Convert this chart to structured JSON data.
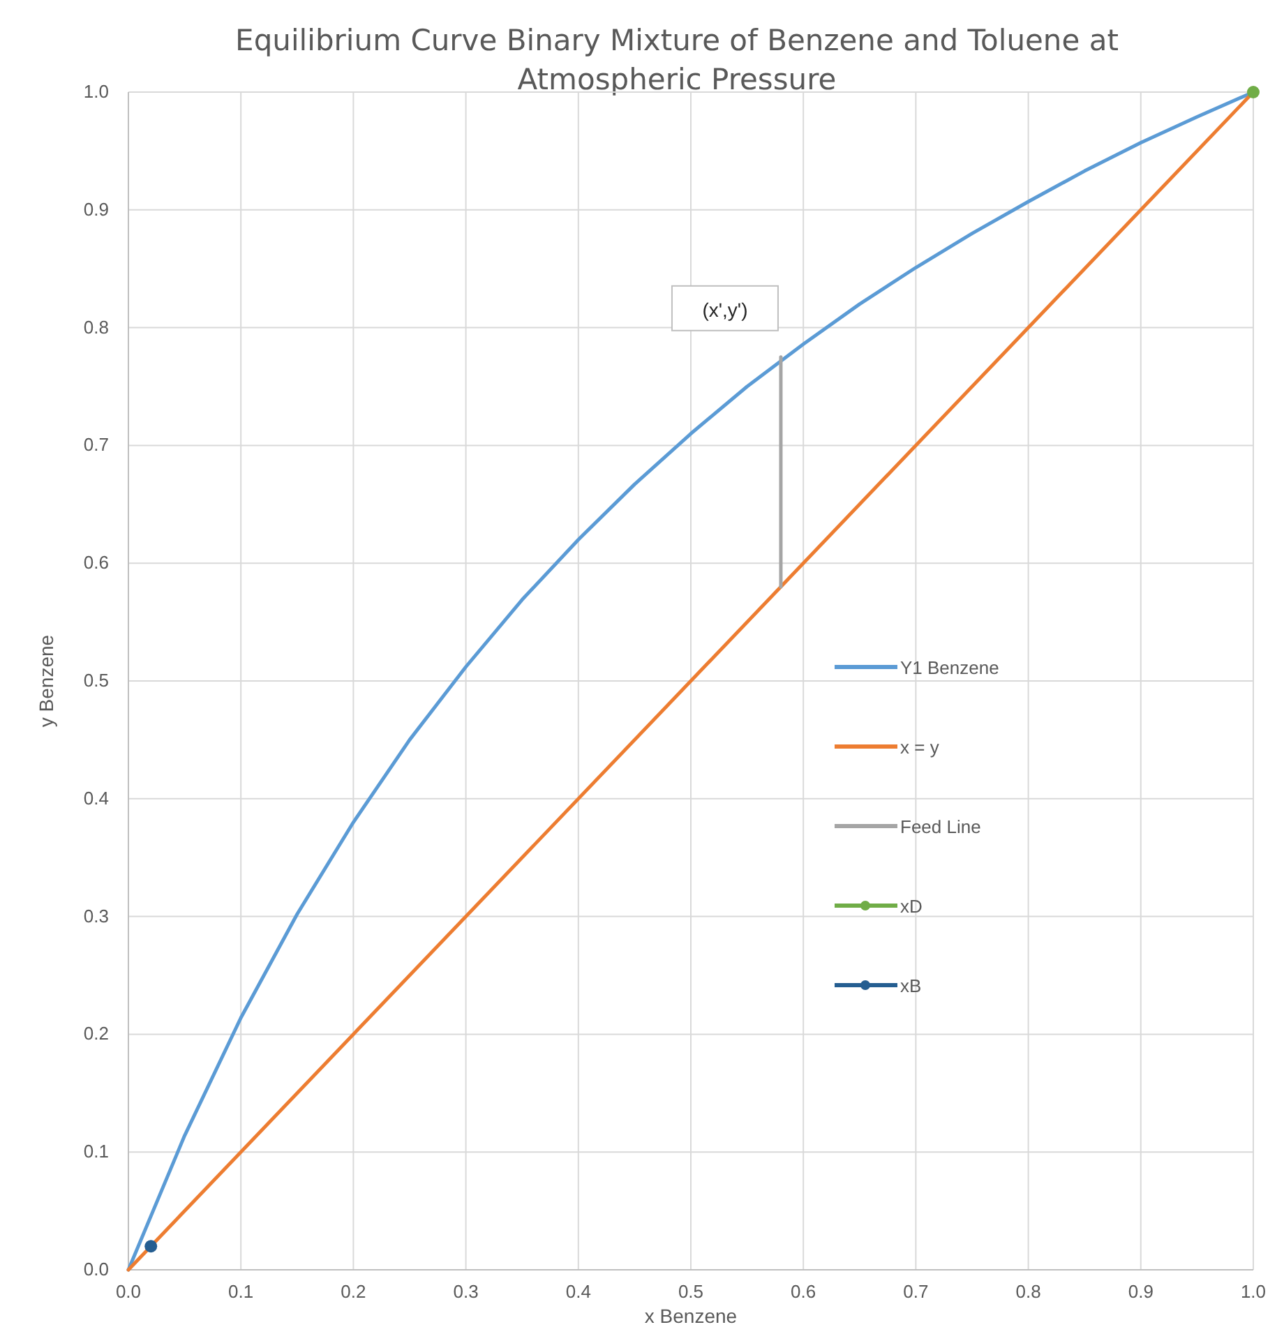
{
  "chart_data": {
    "type": "line",
    "title": "Equilibrium Curve Binary Mixture of Benzene and Toluene at Atmospheric Pressure",
    "xlabel": "x Benzene",
    "ylabel": "y Benzene",
    "xlim": [
      0,
      1
    ],
    "ylim": [
      0,
      1
    ],
    "xticks": [
      {
        "value": 0,
        "label": "0.0"
      },
      0.1,
      0.2,
      0.3,
      0.4,
      0.5,
      0.6,
      0.7,
      0.8,
      0.9,
      {
        "value": 1,
        "label": "1.0"
      }
    ],
    "yticks": [
      {
        "value": 0,
        "label": "0.0"
      },
      0.1,
      0.2,
      0.3,
      0.4,
      0.5,
      0.6,
      0.7,
      0.8,
      0.9,
      {
        "value": 1,
        "label": "1.0"
      }
    ],
    "grid": true,
    "legend": "right",
    "marker": "none",
    "line_style": "solid",
    "annotations": [
      {
        "text": "(x',y')",
        "x": 0.58,
        "y": 0.775
      }
    ],
    "series": [
      {
        "name": "Y1 Benzene",
        "color": "#5b9bd5",
        "x": [
          0,
          0.05,
          0.1,
          0.15,
          0.2,
          0.25,
          0.3,
          0.35,
          0.4,
          0.45,
          0.5,
          0.55,
          0.6,
          0.65,
          0.7,
          0.75,
          0.8,
          0.85,
          0.9,
          0.95,
          1
        ],
        "values": [
          0,
          0.114,
          0.214,
          0.302,
          0.38,
          0.45,
          0.512,
          0.569,
          0.62,
          0.667,
          0.71,
          0.75,
          0.786,
          0.82,
          0.851,
          0.88,
          0.907,
          0.933,
          0.957,
          0.979,
          1
        ]
      },
      {
        "name": "x = y",
        "color": "#ed7d31",
        "x": [
          0,
          1
        ],
        "values": [
          0,
          1
        ]
      },
      {
        "name": "Feed Line",
        "color": "#a5a5a5",
        "x": [
          0.58,
          0.58
        ],
        "values": [
          0.58,
          0.775
        ]
      },
      {
        "name": "xD",
        "color": "#70ad47",
        "x": [
          1
        ],
        "values": [
          1
        ],
        "marker": "circle"
      },
      {
        "name": "xB",
        "color": "#255e91",
        "x": [
          0.02
        ],
        "values": [
          0.02
        ],
        "marker": "circle"
      }
    ]
  }
}
